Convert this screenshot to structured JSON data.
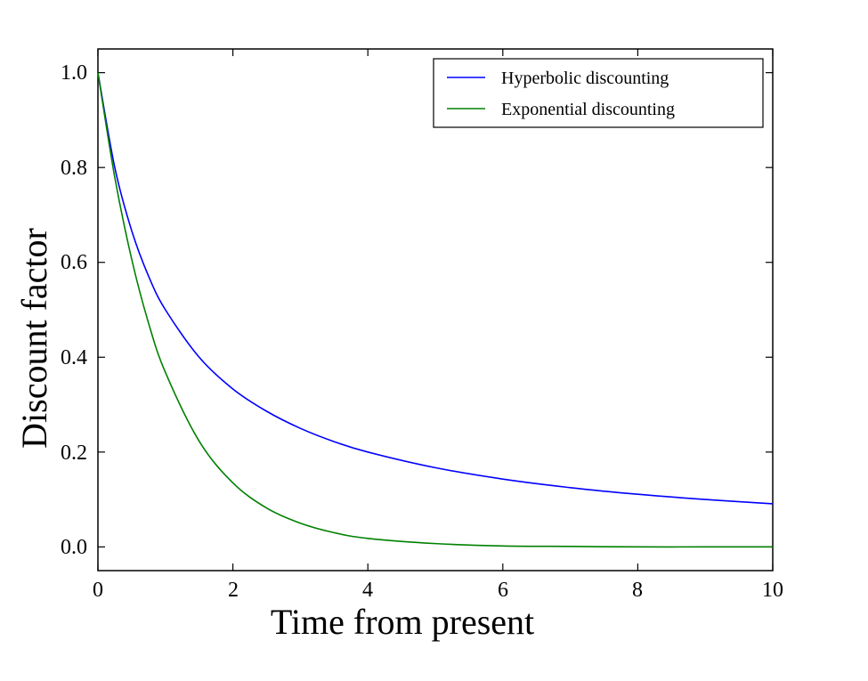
{
  "chart_data": {
    "type": "line",
    "title": "",
    "xlabel": "Time from present",
    "ylabel": "Discount factor",
    "xlim": [
      0,
      10
    ],
    "ylim": [
      -0.05,
      1.05
    ],
    "xticks": [
      0,
      2,
      4,
      6,
      8,
      10
    ],
    "xtick_labels": [
      "0",
      "2",
      "4",
      "6",
      "8",
      "10"
    ],
    "yticks": [
      0.0,
      0.2,
      0.4,
      0.6,
      0.8,
      1.0
    ],
    "ytick_labels": [
      "0.0",
      "0.2",
      "0.4",
      "0.6",
      "0.8",
      "1.0"
    ],
    "grid": false,
    "legend_position": "top-right",
    "x": [
      0,
      0.25,
      0.5,
      0.75,
      1,
      1.5,
      2,
      2.5,
      3,
      3.5,
      4,
      5,
      6,
      7,
      8,
      9,
      10
    ],
    "series": [
      {
        "name": "Hyperbolic discounting",
        "color": "#0000ff",
        "values": [
          1.0,
          0.8,
          0.667,
          0.571,
          0.5,
          0.4,
          0.333,
          0.286,
          0.25,
          0.222,
          0.2,
          0.167,
          0.143,
          0.125,
          0.111,
          0.1,
          0.091
        ]
      },
      {
        "name": "Exponential discounting",
        "color": "#008000",
        "values": [
          1.0,
          0.779,
          0.607,
          0.472,
          0.368,
          0.223,
          0.135,
          0.082,
          0.05,
          0.03,
          0.018,
          0.007,
          0.002,
          0.001,
          0.0,
          0.0,
          0.0
        ]
      }
    ]
  }
}
